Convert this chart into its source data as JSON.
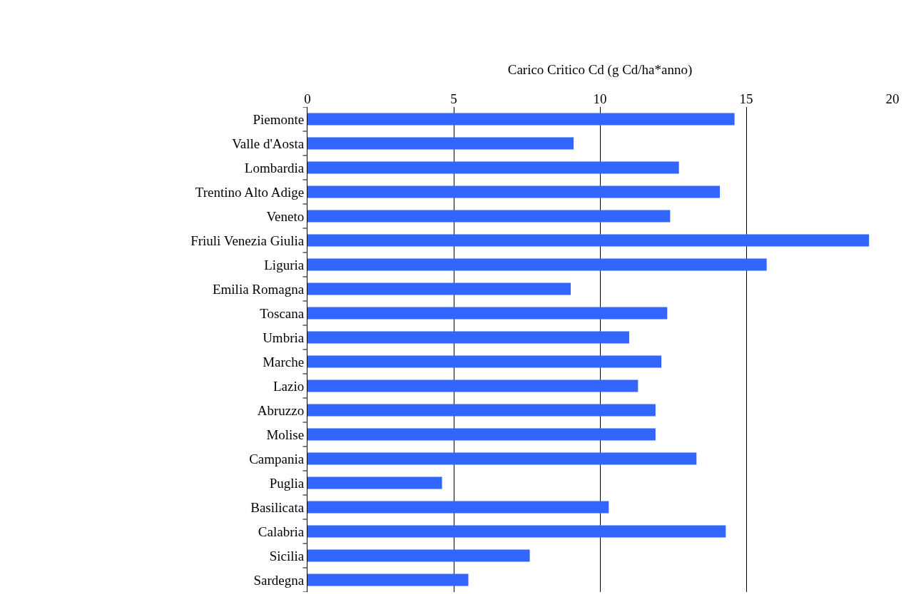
{
  "chart_data": {
    "type": "bar",
    "orientation": "horizontal",
    "xlabel": "Carico Critico Cd (g Cd/ha*anno)",
    "categories": [
      "Piemonte",
      "Valle d'Aosta",
      "Lombardia",
      "Trentino Alto Adige",
      "Veneto",
      "Friuli Venezia Giulia",
      "Liguria",
      "Emilia Romagna",
      "Toscana",
      "Umbria",
      "Marche",
      "Lazio",
      "Abruzzo",
      "Molise",
      "Campania",
      "Puglia",
      "Basilicata",
      "Calabria",
      "Sicilia",
      "Sardegna"
    ],
    "values": [
      14.6,
      9.1,
      12.7,
      14.1,
      12.4,
      19.2,
      15.7,
      9.0,
      12.3,
      11.0,
      12.1,
      11.3,
      11.9,
      11.9,
      13.3,
      4.6,
      10.3,
      14.3,
      7.6,
      5.5
    ],
    "color": "#3366ff",
    "xlim": [
      0,
      20
    ],
    "xticks": [
      0,
      5,
      10,
      15,
      20
    ],
    "grid": "x"
  }
}
